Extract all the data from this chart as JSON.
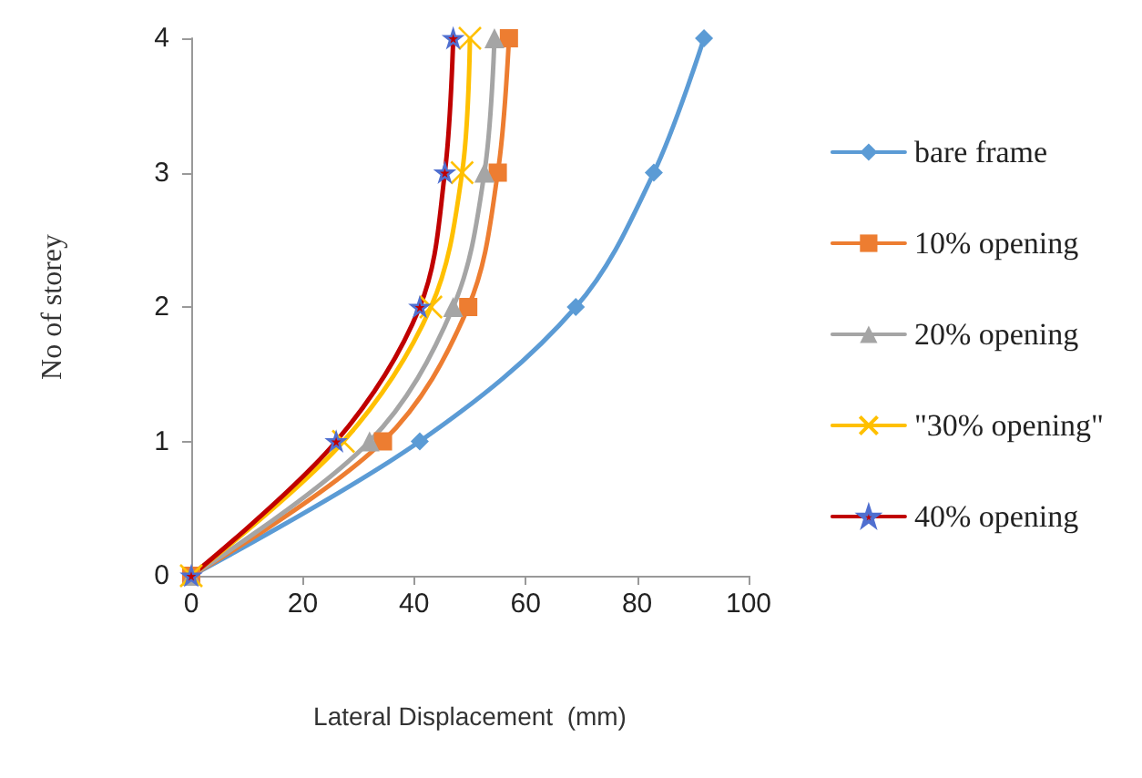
{
  "chart_data": {
    "type": "line",
    "xlabel": "Lateral Displacement  (mm)",
    "ylabel": "No of storey",
    "xlim": [
      0,
      100
    ],
    "xticks": [
      0,
      20,
      40,
      60,
      80,
      100
    ],
    "ylim": [
      0,
      4
    ],
    "yticks": [
      0,
      1,
      2,
      3,
      4
    ],
    "grid": false,
    "legend": "right",
    "line_style": "solid",
    "series": [
      {
        "name": "bare frame",
        "color": "#5b9bd5",
        "marker": "diamond",
        "x": [
          0,
          41,
          69,
          83,
          92
        ],
        "values": [
          0,
          1,
          2,
          3,
          4
        ]
      },
      {
        "name": "10% opening",
        "color": "#ed7d31",
        "marker": "square",
        "x": [
          0,
          34.4,
          49.7,
          55,
          57
        ],
        "values": [
          0,
          1,
          2,
          3,
          4
        ]
      },
      {
        "name": "20% opening",
        "color": "#a5a5a5",
        "marker": "triangle",
        "x": [
          0,
          32,
          47,
          52.6,
          54.4
        ],
        "values": [
          0,
          1,
          2,
          3,
          4
        ]
      },
      {
        "name": "\"30% opening\"",
        "color": "#ffc000",
        "marker": "cross",
        "x": [
          0,
          27.3,
          43,
          48.6,
          50
        ],
        "values": [
          0,
          1,
          2,
          3,
          4
        ]
      },
      {
        "name": "40% opening",
        "color": "#c00000",
        "marker": "star",
        "x": [
          0,
          26,
          41,
          45.5,
          47
        ],
        "values": [
          0,
          1,
          2,
          3,
          4
        ]
      }
    ]
  }
}
